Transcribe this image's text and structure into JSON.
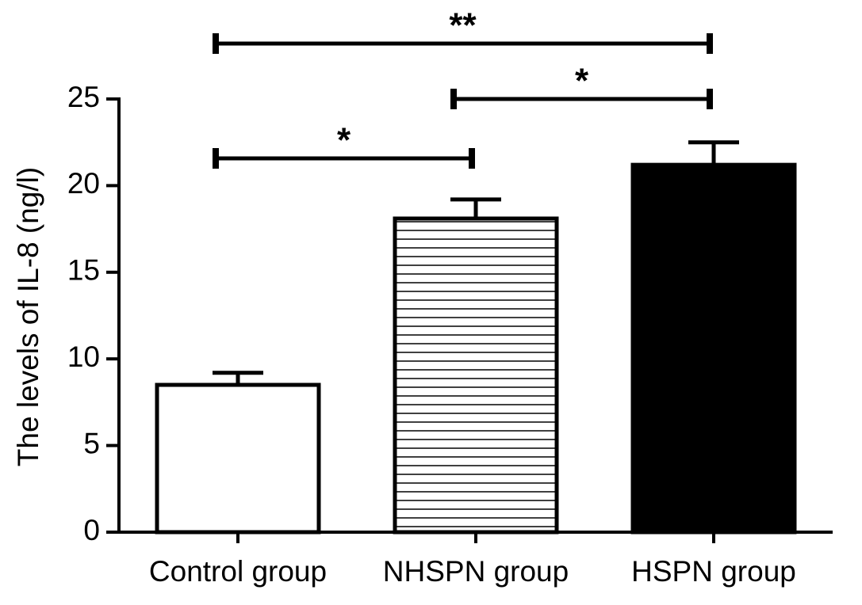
{
  "chart_data": {
    "type": "bar",
    "ylabel": "The levels of IL-8 (ng/l)",
    "categories": [
      "Control group",
      "NHSPN group",
      "HSPN group"
    ],
    "values": [
      8.5,
      18.1,
      21.2
    ],
    "errors": [
      0.7,
      1.1,
      1.3
    ],
    "fills": [
      "white",
      "horizontal-lines",
      "black"
    ],
    "color": "#000000",
    "ylim": [
      0,
      25
    ],
    "yticks": [
      0,
      5,
      10,
      15,
      20,
      25
    ],
    "grid": false,
    "comparisons": [
      {
        "label": "*",
        "pair": [
          0,
          1
        ]
      },
      {
        "label": "*",
        "pair": [
          1,
          2
        ]
      },
      {
        "label": "**",
        "pair": [
          0,
          2
        ]
      }
    ]
  }
}
